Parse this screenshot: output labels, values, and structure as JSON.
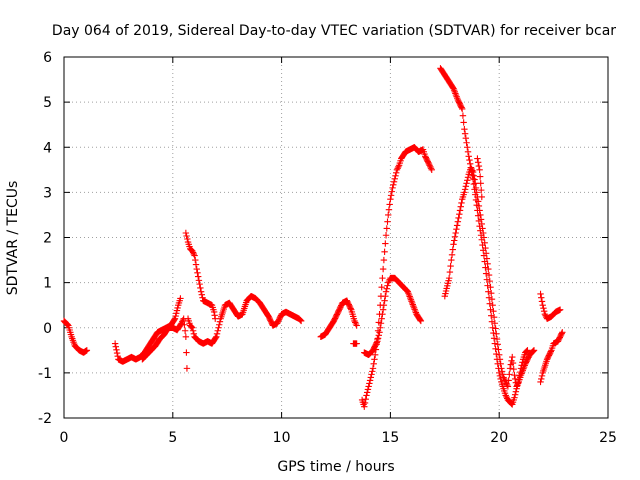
{
  "chart_data": {
    "type": "scatter",
    "title": "Day 064 of 2019, Sidereal Day-to-day VTEC variation (SDTVAR) for receiver bcar",
    "xlabel": "GPS time / hours",
    "ylabel": "SDTVAR / TECUs",
    "xlim": [
      0,
      25
    ],
    "ylim": [
      -2,
      6
    ],
    "xticks": [
      "0",
      "5",
      "10",
      "15",
      "20",
      "25"
    ],
    "yticks": [
      "-2",
      "-1",
      "0",
      "1",
      "2",
      "3",
      "4",
      "5",
      "6"
    ],
    "grid": true,
    "marker": "+",
    "color": "#ff0000",
    "series": [
      {
        "name": "SDTVAR",
        "segments": [
          [
            [
              0.0,
              0.15
            ],
            [
              0.2,
              0.05
            ],
            [
              0.35,
              -0.2
            ],
            [
              0.5,
              -0.4
            ],
            [
              0.7,
              -0.5
            ],
            [
              0.9,
              -0.55
            ],
            [
              1.05,
              -0.5
            ]
          ],
          [
            [
              2.35,
              -0.35
            ],
            [
              2.5,
              -0.7
            ],
            [
              2.7,
              -0.75
            ],
            [
              2.9,
              -0.7
            ],
            [
              3.1,
              -0.65
            ],
            [
              3.3,
              -0.7
            ],
            [
              3.5,
              -0.65
            ],
            [
              3.7,
              -0.55
            ],
            [
              3.9,
              -0.4
            ],
            [
              4.1,
              -0.25
            ],
            [
              4.3,
              -0.1
            ],
            [
              4.5,
              -0.05
            ],
            [
              4.7,
              0.0
            ],
            [
              4.9,
              0.05
            ],
            [
              5.1,
              0.2
            ],
            [
              5.25,
              0.5
            ],
            [
              5.35,
              0.65
            ]
          ],
          [
            [
              3.6,
              -0.7
            ],
            [
              3.8,
              -0.6
            ],
            [
              4.0,
              -0.5
            ],
            [
              4.2,
              -0.4
            ],
            [
              4.4,
              -0.25
            ],
            [
              4.6,
              -0.15
            ],
            [
              4.8,
              0.0
            ],
            [
              5.0,
              0.0
            ],
            [
              5.2,
              -0.05
            ],
            [
              5.4,
              0.1
            ],
            [
              5.5,
              0.2
            ],
            [
              5.6,
              -0.2
            ],
            [
              5.65,
              -0.9
            ]
          ],
          [
            [
              5.6,
              2.1
            ],
            [
              5.7,
              1.9
            ],
            [
              5.8,
              1.75
            ],
            [
              5.9,
              1.7
            ],
            [
              6.0,
              1.6
            ],
            [
              6.1,
              1.3
            ],
            [
              6.2,
              1.05
            ],
            [
              6.3,
              0.8
            ],
            [
              6.4,
              0.6
            ],
            [
              6.6,
              0.55
            ],
            [
              6.8,
              0.5
            ],
            [
              6.9,
              0.35
            ],
            [
              6.95,
              0.2
            ]
          ],
          [
            [
              5.7,
              0.2
            ],
            [
              5.8,
              0.05
            ],
            [
              5.9,
              0.0
            ],
            [
              6.0,
              -0.2
            ],
            [
              6.2,
              -0.3
            ],
            [
              6.4,
              -0.35
            ],
            [
              6.6,
              -0.3
            ],
            [
              6.8,
              -0.35
            ],
            [
              7.0,
              -0.2
            ],
            [
              7.1,
              0.0
            ],
            [
              7.2,
              0.2
            ],
            [
              7.4,
              0.5
            ],
            [
              7.6,
              0.55
            ],
            [
              7.8,
              0.4
            ],
            [
              8.0,
              0.25
            ],
            [
              8.2,
              0.3
            ],
            [
              8.4,
              0.6
            ],
            [
              8.6,
              0.7
            ],
            [
              8.8,
              0.65
            ],
            [
              9.0,
              0.55
            ],
            [
              9.2,
              0.4
            ],
            [
              9.4,
              0.25
            ],
            [
              9.6,
              0.05
            ],
            [
              9.8,
              0.1
            ],
            [
              10.0,
              0.3
            ],
            [
              10.2,
              0.35
            ],
            [
              10.4,
              0.3
            ],
            [
              10.6,
              0.25
            ],
            [
              10.8,
              0.2
            ],
            [
              10.9,
              0.15
            ]
          ],
          [
            [
              11.8,
              -0.2
            ],
            [
              12.0,
              -0.15
            ],
            [
              12.2,
              0.0
            ],
            [
              12.4,
              0.15
            ],
            [
              12.6,
              0.35
            ],
            [
              12.8,
              0.55
            ],
            [
              13.0,
              0.6
            ],
            [
              13.2,
              0.4
            ],
            [
              13.35,
              0.15
            ],
            [
              13.45,
              0.05
            ]
          ],
          [
            [
              13.3,
              -0.35
            ],
            [
              13.45,
              -0.35
            ]
          ],
          [
            [
              13.7,
              -1.6
            ],
            [
              13.8,
              -1.75
            ],
            [
              13.9,
              -1.5
            ],
            [
              14.0,
              -1.3
            ],
            [
              14.1,
              -1.1
            ],
            [
              14.2,
              -0.9
            ],
            [
              14.3,
              -0.6
            ],
            [
              14.4,
              -0.25
            ],
            [
              14.5,
              0.3
            ],
            [
              14.6,
              0.9
            ],
            [
              14.7,
              1.5
            ],
            [
              14.8,
              2.05
            ],
            [
              14.9,
              2.5
            ],
            [
              15.0,
              2.85
            ],
            [
              15.1,
              3.1
            ],
            [
              15.2,
              3.3
            ],
            [
              15.3,
              3.5
            ],
            [
              15.4,
              3.6
            ],
            [
              15.5,
              3.75
            ],
            [
              15.7,
              3.9
            ],
            [
              15.9,
              3.95
            ],
            [
              16.1,
              4.0
            ],
            [
              16.3,
              3.9
            ],
            [
              16.5,
              3.95
            ],
            [
              16.6,
              3.8
            ],
            [
              16.8,
              3.6
            ],
            [
              16.9,
              3.5
            ]
          ],
          [
            [
              13.8,
              -0.55
            ],
            [
              14.0,
              -0.6
            ],
            [
              14.2,
              -0.5
            ],
            [
              14.4,
              -0.3
            ],
            [
              14.5,
              -0.1
            ],
            [
              14.6,
              0.2
            ],
            [
              14.7,
              0.5
            ],
            [
              14.8,
              0.8
            ],
            [
              14.9,
              1.0
            ],
            [
              15.0,
              1.1
            ],
            [
              15.2,
              1.1
            ],
            [
              15.4,
              1.0
            ],
            [
              15.6,
              0.9
            ],
            [
              15.8,
              0.8
            ],
            [
              16.0,
              0.55
            ],
            [
              16.2,
              0.3
            ],
            [
              16.4,
              0.15
            ]
          ],
          [
            [
              17.3,
              5.75
            ],
            [
              17.5,
              5.6
            ],
            [
              17.7,
              5.45
            ],
            [
              17.9,
              5.3
            ],
            [
              18.1,
              5.05
            ],
            [
              18.3,
              4.85
            ],
            [
              18.4,
              4.4
            ],
            [
              18.5,
              4.1
            ],
            [
              18.6,
              3.8
            ],
            [
              18.7,
              3.55
            ],
            [
              18.8,
              3.3
            ],
            [
              18.9,
              2.95
            ],
            [
              19.0,
              2.6
            ],
            [
              19.1,
              2.25
            ],
            [
              19.2,
              1.95
            ],
            [
              19.3,
              1.6
            ],
            [
              19.4,
              1.2
            ],
            [
              19.5,
              0.8
            ],
            [
              19.6,
              0.4
            ],
            [
              19.7,
              0.0
            ],
            [
              19.8,
              -0.35
            ],
            [
              19.9,
              -0.7
            ],
            [
              20.0,
              -1.0
            ],
            [
              20.1,
              -1.2
            ],
            [
              20.2,
              -1.35
            ],
            [
              20.3,
              -1.5
            ],
            [
              20.4,
              -1.6
            ],
            [
              20.5,
              -1.65
            ],
            [
              20.6,
              -1.7
            ],
            [
              20.7,
              -1.55
            ],
            [
              20.8,
              -1.35
            ],
            [
              20.9,
              -1.15
            ],
            [
              21.0,
              -0.9
            ],
            [
              21.1,
              -0.7
            ],
            [
              21.2,
              -0.55
            ],
            [
              21.3,
              -0.5
            ]
          ],
          [
            [
              17.5,
              0.7
            ],
            [
              17.7,
              1.1
            ],
            [
              17.8,
              1.5
            ],
            [
              17.9,
              1.85
            ],
            [
              18.0,
              2.1
            ],
            [
              18.1,
              2.35
            ],
            [
              18.2,
              2.6
            ],
            [
              18.3,
              2.85
            ],
            [
              18.4,
              3.0
            ],
            [
              18.5,
              3.2
            ],
            [
              18.6,
              3.4
            ],
            [
              18.7,
              3.55
            ],
            [
              18.8,
              3.45
            ],
            [
              18.9,
              3.2
            ],
            [
              19.0,
              2.9
            ],
            [
              19.1,
              2.6
            ],
            [
              19.2,
              2.3
            ],
            [
              19.3,
              2.0
            ],
            [
              19.4,
              1.65
            ],
            [
              19.5,
              1.3
            ],
            [
              19.6,
              0.9
            ],
            [
              19.7,
              0.5
            ],
            [
              19.8,
              0.1
            ],
            [
              19.9,
              -0.25
            ],
            [
              20.0,
              -0.6
            ],
            [
              20.1,
              -0.9
            ],
            [
              20.2,
              -1.1
            ],
            [
              20.3,
              -1.2
            ],
            [
              20.4,
              -1.3
            ],
            [
              20.5,
              -0.9
            ],
            [
              20.6,
              -0.65
            ],
            [
              20.7,
              -1.05
            ],
            [
              20.8,
              -1.3
            ],
            [
              20.9,
              -1.2
            ],
            [
              21.0,
              -1.05
            ],
            [
              21.2,
              -0.8
            ],
            [
              21.4,
              -0.6
            ],
            [
              21.6,
              -0.5
            ]
          ],
          [
            [
              19.0,
              3.75
            ],
            [
              19.1,
              3.5
            ],
            [
              19.15,
              3.2
            ],
            [
              19.2,
              2.9
            ]
          ],
          [
            [
              21.9,
              0.75
            ],
            [
              22.0,
              0.5
            ],
            [
              22.1,
              0.3
            ],
            [
              22.2,
              0.2
            ],
            [
              22.4,
              0.25
            ],
            [
              22.6,
              0.35
            ],
            [
              22.8,
              0.4
            ]
          ],
          [
            [
              21.9,
              -1.2
            ],
            [
              22.0,
              -1.0
            ],
            [
              22.2,
              -0.7
            ],
            [
              22.4,
              -0.5
            ],
            [
              22.5,
              -0.35
            ],
            [
              22.7,
              -0.3
            ],
            [
              22.9,
              -0.1
            ]
          ]
        ]
      }
    ]
  }
}
